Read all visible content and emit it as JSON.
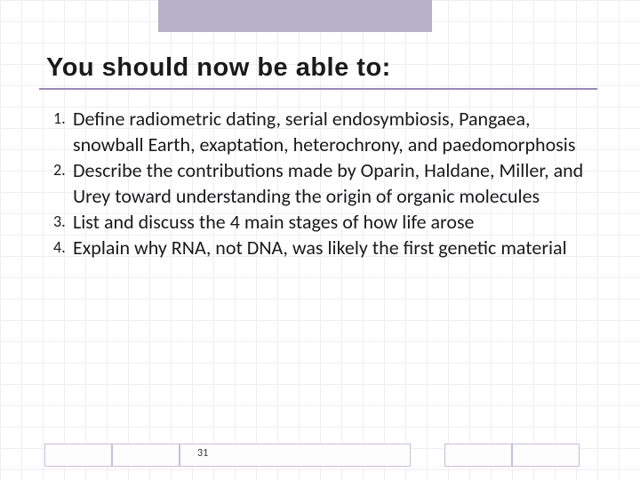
{
  "title": "You should now be able to:",
  "items": {
    "n1": "1.",
    "t1": "Define radiometric dating, serial endosymbiosis, Pangaea, snowball Earth, exaptation, heterochrony, and paedomorphosis",
    "n2": "2.",
    "t2": "Describe the contributions made by Oparin, Haldane, Miller, and Urey toward understanding the origin of organic molecules",
    "n3": "3.",
    "t3": "List and discuss the 4 main stages of how life arose",
    "n4": "4.",
    "t4": "Explain why RNA, not DNA, was likely the first genetic material"
  },
  "pageNumber": "31",
  "colors": {
    "accent_band": "#b9b0c9",
    "underline": "#9a88b8",
    "grid": "#f0ecf5",
    "cell_border": "#c9bedb",
    "text": "#1a1a1a"
  }
}
